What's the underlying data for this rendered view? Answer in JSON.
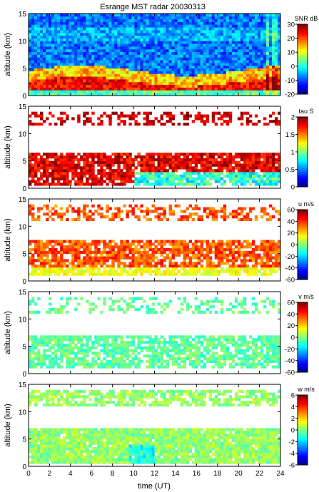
{
  "figure": {
    "title": "Esrange MST radar 20030313",
    "xlabel": "time (UT)"
  },
  "chart_data": {
    "type": "heatmap",
    "title": "Esrange MST radar 20030313",
    "xlabel": "time (UT)",
    "xlim": [
      0,
      24
    ],
    "xticks": [
      0,
      2,
      4,
      6,
      8,
      10,
      12,
      14,
      16,
      18,
      20,
      22,
      24
    ],
    "xtick_labels": [
      "0",
      "2",
      "4",
      "6",
      "8",
      "10",
      "12",
      "14",
      "16",
      "18",
      "20",
      "22",
      "24"
    ],
    "panels": [
      {
        "ylabel": "altitude (km)",
        "ylim": [
          0,
          15
        ],
        "yticks": [
          0,
          5,
          10,
          15
        ],
        "ytick_labels": [
          "0",
          "5",
          "10",
          "15"
        ],
        "colorbar": {
          "label": "SNR dB",
          "range": [
            -20,
            30
          ],
          "ticks": [
            -20,
            -10,
            0,
            10,
            20,
            30
          ],
          "tick_labels": [
            "-20",
            "-10",
            "0",
            "10",
            "20",
            "30"
          ]
        }
      },
      {
        "ylabel": "altitude (km)",
        "ylim": [
          0,
          15
        ],
        "yticks": [
          0,
          5,
          10,
          15
        ],
        "ytick_labels": [
          "0",
          "5",
          "10",
          "15"
        ],
        "colorbar": {
          "label": "tau S",
          "range": [
            0,
            2
          ],
          "ticks": [
            0,
            0.5,
            1,
            1.5,
            2
          ],
          "tick_labels": [
            "0",
            "0.5",
            "1",
            "1.5",
            "2"
          ]
        }
      },
      {
        "ylabel": "altitude (km)",
        "ylim": [
          0,
          15
        ],
        "yticks": [
          0,
          5,
          10,
          15
        ],
        "ytick_labels": [
          "0",
          "5",
          "10",
          "15"
        ],
        "colorbar": {
          "label": "u m/s",
          "range": [
            -60,
            60
          ],
          "ticks": [
            -60,
            -40,
            -20,
            0,
            20,
            40,
            60
          ],
          "tick_labels": [
            "-60",
            "-40",
            "-20",
            "0",
            "20",
            "40",
            "60"
          ]
        }
      },
      {
        "ylabel": "altitude (km)",
        "ylim": [
          0,
          15
        ],
        "yticks": [
          0,
          5,
          10,
          15
        ],
        "ytick_labels": [
          "0",
          "5",
          "10",
          "15"
        ],
        "colorbar": {
          "label": "v m/s",
          "range": [
            -60,
            60
          ],
          "ticks": [
            -60,
            -40,
            -20,
            0,
            20,
            40,
            60
          ],
          "tick_labels": [
            "-60",
            "-40",
            "-20",
            "0",
            "20",
            "40",
            "60"
          ]
        }
      },
      {
        "ylabel": "altitude (km)",
        "ylim": [
          0,
          15
        ],
        "yticks": [
          0,
          5,
          10,
          15
        ],
        "ytick_labels": [
          "0",
          "5",
          "10",
          "15"
        ],
        "colorbar": {
          "label": "w m/s",
          "range": [
            -6,
            6
          ],
          "ticks": [
            -6,
            -4,
            -2,
            0,
            2,
            4,
            6
          ],
          "tick_labels": [
            "-6",
            "-4",
            "-2",
            "0",
            "2",
            "4",
            "6"
          ]
        }
      }
    ]
  }
}
